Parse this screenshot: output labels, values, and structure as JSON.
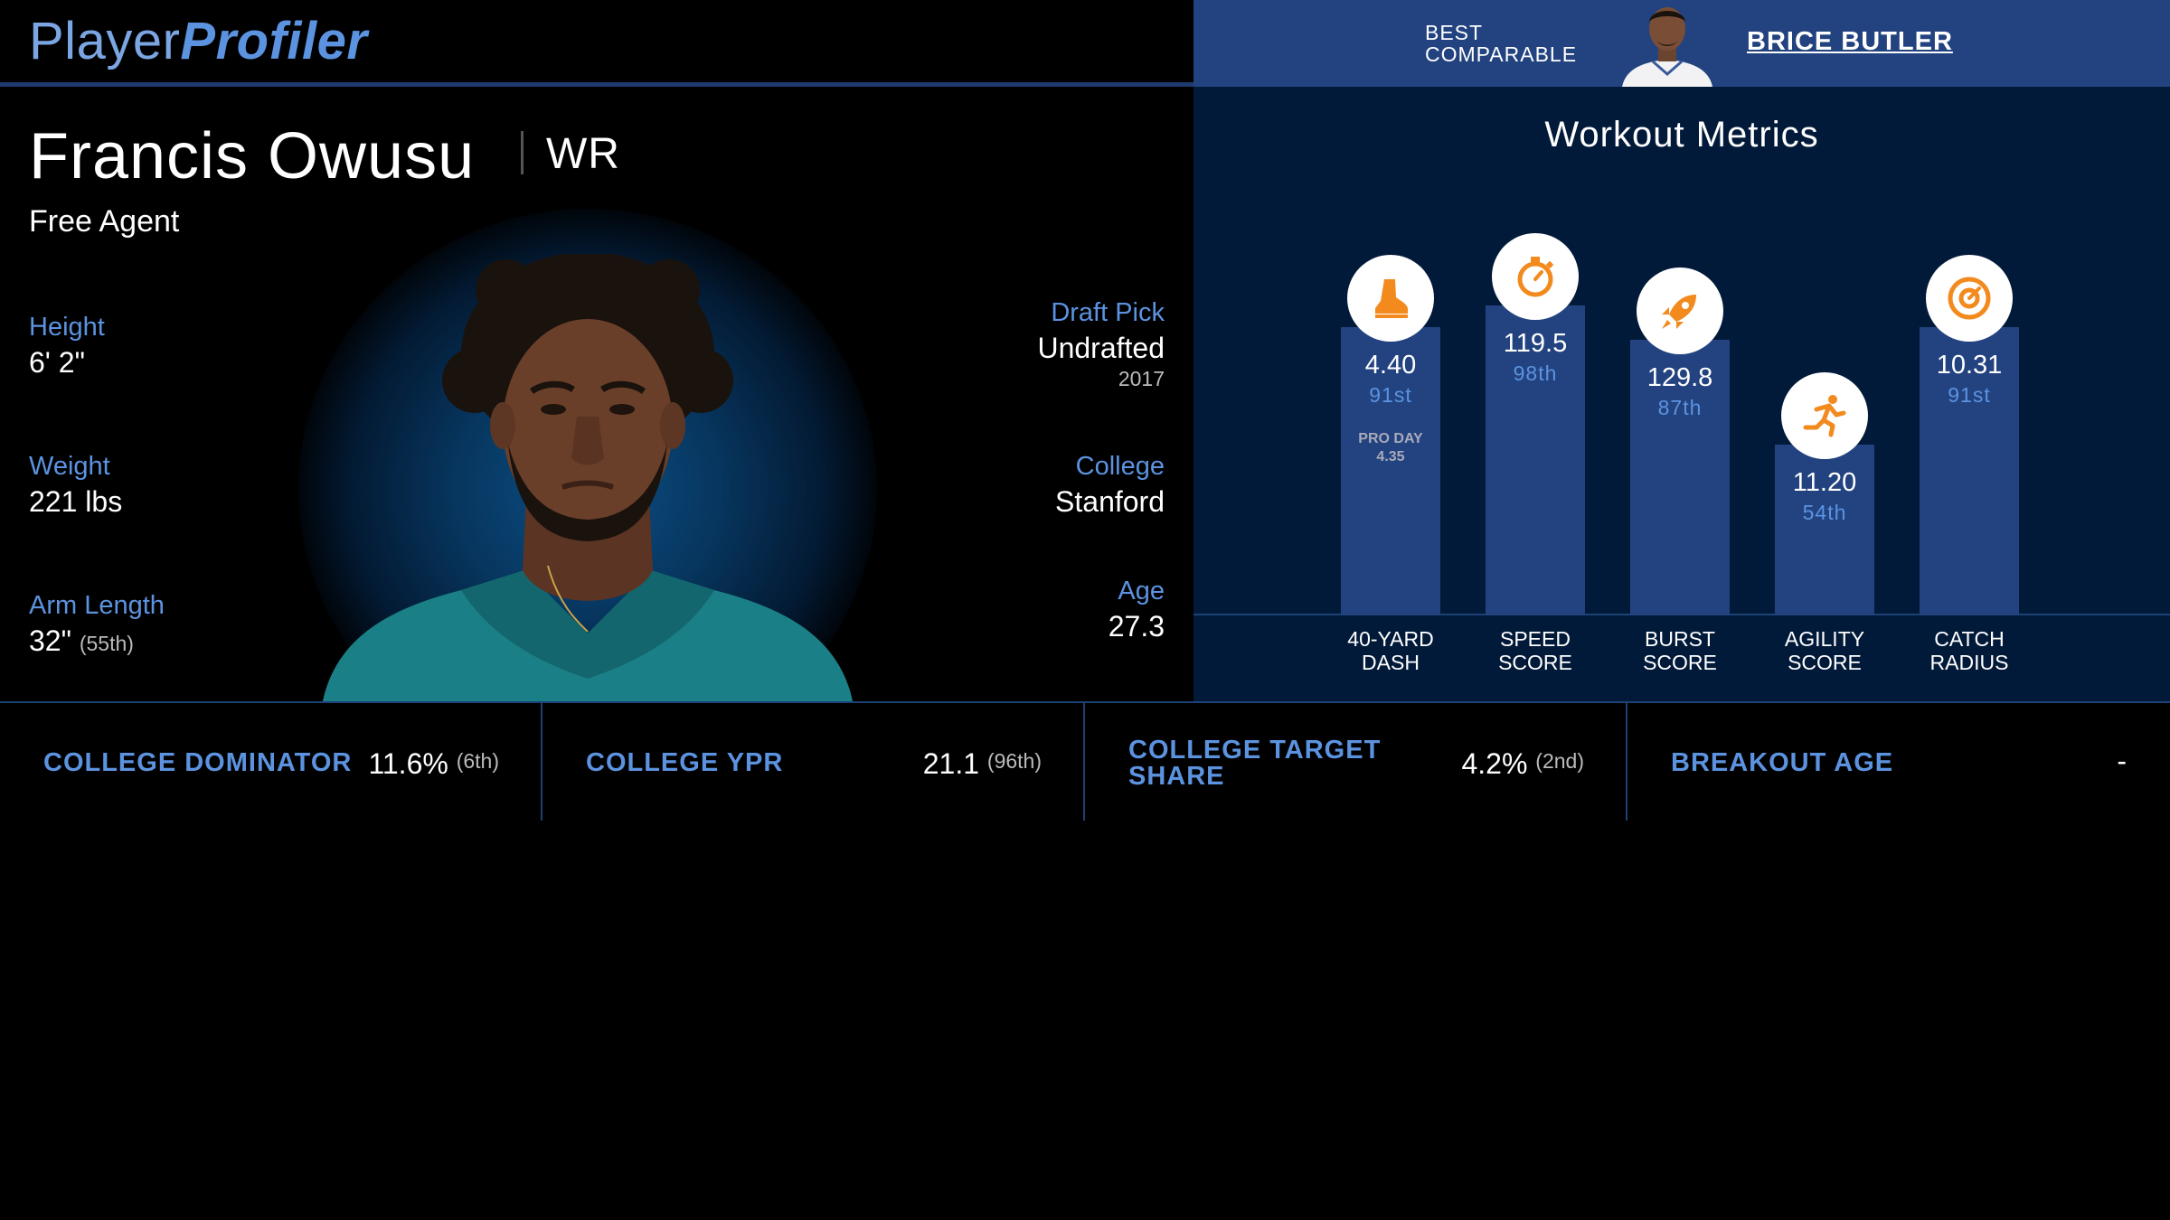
{
  "brand": {
    "part1": "Player",
    "part2": "Profiler"
  },
  "best_comparable": {
    "label_line1": "BEST",
    "label_line2": "COMPARABLE",
    "name": "BRICE BUTLER"
  },
  "player": {
    "name": "Francis Owusu",
    "position": "WR",
    "team": "Free Agent",
    "height": {
      "label": "Height",
      "value": "6' 2\""
    },
    "weight": {
      "label": "Weight",
      "value": "221 lbs"
    },
    "arm_length": {
      "label": "Arm Length",
      "value": "32\"",
      "rank": "(55th)"
    },
    "draft_pick": {
      "label": "Draft Pick",
      "value": "Undrafted",
      "year": "2017"
    },
    "college": {
      "label": "College",
      "value": "Stanford"
    },
    "age": {
      "label": "Age",
      "value": "27.3"
    }
  },
  "workout": {
    "title": "Workout Metrics",
    "metrics": [
      {
        "label1": "40-YARD",
        "label2": "DASH",
        "value": "4.40",
        "percentile": "91st",
        "pct": 91,
        "note1": "PRO DAY",
        "note2": "4.35",
        "icon": "shoe-icon"
      },
      {
        "label1": "SPEED",
        "label2": "SCORE",
        "value": "119.5",
        "percentile": "98th",
        "pct": 98,
        "note1": "",
        "note2": "",
        "icon": "stopwatch-icon"
      },
      {
        "label1": "BURST",
        "label2": "SCORE",
        "value": "129.8",
        "percentile": "87th",
        "pct": 87,
        "note1": "",
        "note2": "",
        "icon": "rocket-icon"
      },
      {
        "label1": "AGILITY",
        "label2": "SCORE",
        "value": "11.20",
        "percentile": "54th",
        "pct": 54,
        "note1": "",
        "note2": "",
        "icon": "runner-icon"
      },
      {
        "label1": "CATCH",
        "label2": "RADIUS",
        "value": "10.31",
        "percentile": "91st",
        "pct": 91,
        "note1": "",
        "note2": "",
        "icon": "target-icon"
      }
    ]
  },
  "bottom_stats": [
    {
      "label1": "COLLEGE DOMINATOR",
      "label2": "",
      "value": "11.6%",
      "rank": "(6th)"
    },
    {
      "label1": "COLLEGE YPR",
      "label2": "",
      "value": "21.1",
      "rank": "(96th)"
    },
    {
      "label1": "COLLEGE TARGET",
      "label2": "SHARE",
      "value": "4.2%",
      "rank": "(2nd)"
    },
    {
      "label1": "BREAKOUT AGE",
      "label2": "",
      "value": "-",
      "rank": ""
    }
  ],
  "colors": {
    "accent": "#5c93e0",
    "panel": "#22437f",
    "workout_bg": "#021a39",
    "icon_orange": "#f28a1e"
  }
}
